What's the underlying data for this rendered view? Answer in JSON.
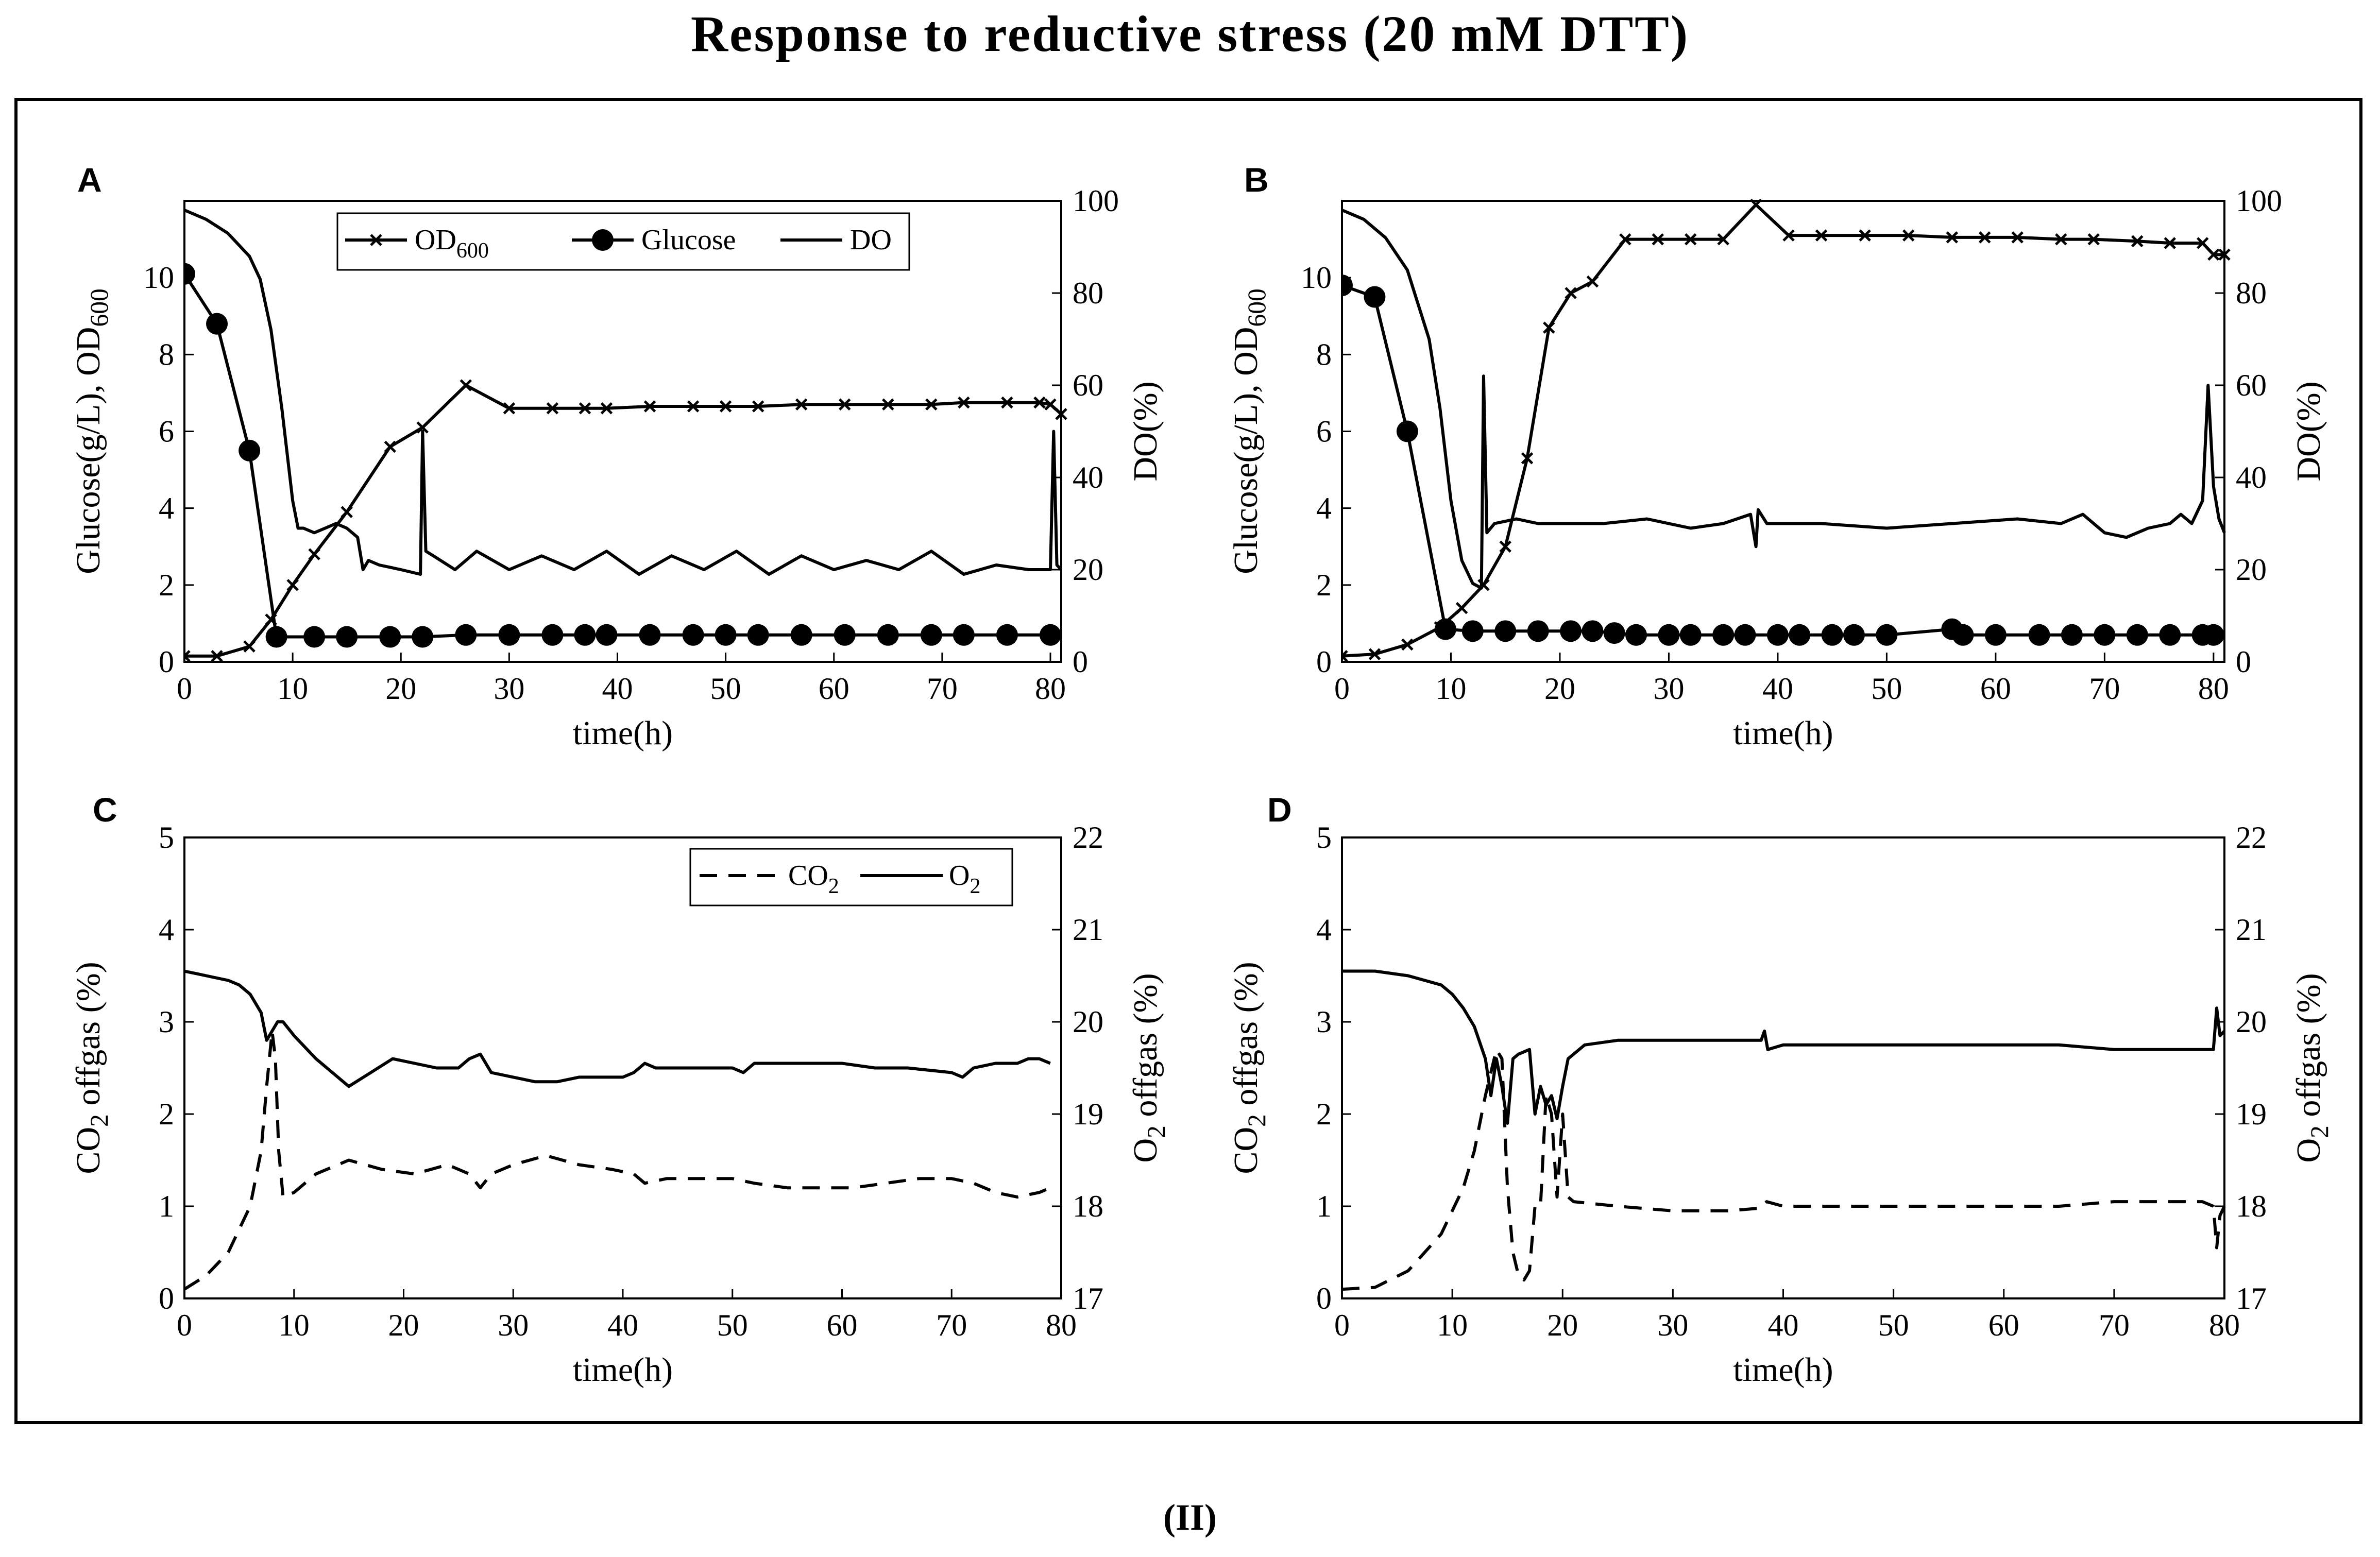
{
  "title": "Response to reductive stress (20 mM DTT)",
  "figure_label": "(II)",
  "chart_data": [
    {
      "panel": "A",
      "type": "line",
      "xlabel": "time(h)",
      "ylabel": "Glucose(g/L), OD",
      "ylabel_sub": "600",
      "y2label": "DO(%)",
      "xlim": [
        0,
        81
      ],
      "ylim": [
        0,
        12
      ],
      "y2lim": [
        0,
        100
      ],
      "xticks": [
        0,
        10,
        20,
        30,
        40,
        50,
        60,
        70,
        80
      ],
      "yticks": [
        0,
        2,
        4,
        6,
        8,
        10
      ],
      "y2ticks": [
        0,
        20,
        40,
        60,
        80,
        100
      ],
      "legend": [
        {
          "label": "OD",
          "sub": "600",
          "marker": "x"
        },
        {
          "label": "Glucose",
          "marker": "o"
        },
        {
          "label": "DO",
          "marker": "none"
        }
      ],
      "series": [
        {
          "name": "OD600",
          "axis": "left",
          "marker": "x",
          "x": [
            0,
            3,
            6,
            8,
            10,
            12,
            15,
            19,
            22,
            26,
            30,
            34,
            37,
            39,
            43,
            47,
            50,
            53,
            57,
            61,
            65,
            69,
            72,
            76,
            79,
            80,
            81
          ],
          "y": [
            0.15,
            0.15,
            0.4,
            1.1,
            2.0,
            2.8,
            3.9,
            5.6,
            6.1,
            7.2,
            6.6,
            6.6,
            6.6,
            6.6,
            6.65,
            6.65,
            6.65,
            6.65,
            6.7,
            6.7,
            6.7,
            6.7,
            6.75,
            6.75,
            6.75,
            6.7,
            6.45
          ]
        },
        {
          "name": "Glucose",
          "axis": "left",
          "marker": "o",
          "x": [
            0,
            3,
            6,
            8.5,
            12,
            15,
            19,
            22,
            26,
            30,
            34,
            37,
            39,
            43,
            47,
            50,
            53,
            57,
            61,
            65,
            69,
            72,
            76,
            80
          ],
          "y": [
            10.1,
            8.8,
            5.5,
            0.65,
            0.65,
            0.65,
            0.65,
            0.65,
            0.7,
            0.7,
            0.7,
            0.7,
            0.7,
            0.7,
            0.7,
            0.7,
            0.7,
            0.7,
            0.7,
            0.7,
            0.7,
            0.7,
            0.7,
            0.7
          ]
        },
        {
          "name": "DO",
          "axis": "right",
          "marker": "none",
          "x": [
            0,
            2,
            4,
            6,
            7,
            8,
            9,
            10,
            10.5,
            11,
            12,
            13,
            14,
            15,
            16,
            16.5,
            17,
            18,
            20,
            21.8,
            22,
            22.3,
            23,
            25,
            27,
            30,
            33,
            36,
            39,
            42,
            45,
            48,
            51,
            54,
            57,
            60,
            63,
            66,
            69,
            72,
            75,
            78,
            80,
            80.3,
            80.6,
            81
          ],
          "y": [
            98,
            96,
            93,
            88,
            83,
            72,
            55,
            35,
            29,
            29,
            28,
            29,
            30,
            29,
            27,
            20,
            22,
            21,
            20,
            19,
            50,
            24,
            23,
            20,
            24,
            20,
            23,
            20,
            24,
            19,
            23,
            20,
            24,
            19,
            23,
            20,
            22,
            20,
            24,
            19,
            21,
            20,
            20,
            50,
            21,
            20
          ]
        }
      ]
    },
    {
      "panel": "B",
      "type": "line",
      "xlabel": "time(h)",
      "ylabel": "Glucose(g/L), OD",
      "ylabel_sub": "600",
      "y2label": "DO(%)",
      "xlim": [
        0,
        81
      ],
      "ylim": [
        0,
        12
      ],
      "y2lim": [
        0,
        100
      ],
      "xticks": [
        0,
        10,
        20,
        30,
        40,
        50,
        60,
        70,
        80
      ],
      "yticks": [
        0,
        2,
        4,
        6,
        8,
        10
      ],
      "y2ticks": [
        0,
        20,
        40,
        60,
        80,
        100
      ],
      "series": [
        {
          "name": "OD600",
          "axis": "left",
          "marker": "x",
          "x": [
            0,
            3,
            6,
            9,
            11,
            13,
            15,
            17,
            19,
            21,
            23,
            26,
            29,
            32,
            35,
            38,
            41,
            44,
            48,
            52,
            56,
            59,
            62,
            66,
            69,
            73,
            76,
            79,
            80,
            81
          ],
          "y": [
            0.15,
            0.2,
            0.45,
            0.9,
            1.4,
            2.0,
            3.0,
            5.3,
            8.7,
            9.6,
            9.9,
            11.0,
            11.0,
            11.0,
            11.0,
            11.9,
            11.1,
            11.1,
            11.1,
            11.1,
            11.05,
            11.05,
            11.05,
            11.0,
            11.0,
            10.95,
            10.9,
            10.9,
            10.6,
            10.6
          ]
        },
        {
          "name": "Glucose",
          "axis": "left",
          "marker": "o",
          "x": [
            0,
            3,
            6,
            9.5,
            12,
            15,
            18,
            21,
            23,
            25,
            27,
            30,
            32,
            35,
            37,
            40,
            42,
            45,
            47,
            50,
            56,
            57,
            60,
            64,
            67,
            70,
            73,
            76,
            79,
            80
          ],
          "y": [
            9.8,
            9.5,
            6.0,
            0.85,
            0.8,
            0.8,
            0.8,
            0.8,
            0.8,
            0.75,
            0.7,
            0.7,
            0.7,
            0.7,
            0.7,
            0.7,
            0.7,
            0.7,
            0.7,
            0.7,
            0.85,
            0.7,
            0.7,
            0.7,
            0.7,
            0.7,
            0.7,
            0.7,
            0.7,
            0.7
          ]
        },
        {
          "name": "DO",
          "axis": "right",
          "marker": "none",
          "x": [
            0,
            2,
            4,
            6,
            8,
            9,
            10,
            11,
            12,
            12.8,
            13,
            13.3,
            14,
            16,
            18,
            20,
            24,
            28,
            32,
            35,
            37.5,
            38,
            38.2,
            39,
            44,
            50,
            56,
            62,
            66,
            68,
            70,
            72,
            74,
            76,
            77,
            78,
            79,
            79.5,
            80,
            80.5,
            81
          ],
          "y": [
            98,
            96,
            92,
            85,
            70,
            55,
            35,
            22,
            17,
            16,
            62,
            28,
            30,
            31,
            30,
            30,
            30,
            31,
            29,
            30,
            32,
            25,
            33,
            30,
            30,
            29,
            30,
            31,
            30,
            32,
            28,
            27,
            29,
            30,
            32,
            30,
            35,
            60,
            38,
            31,
            28
          ]
        }
      ]
    },
    {
      "panel": "C",
      "type": "line",
      "xlabel": "time(h)",
      "ylabel": "CO",
      "ylabel_sub": "2",
      "ylabel_rest": " offgas (%)",
      "y2label": "O",
      "y2label_sub": "2",
      "y2label_rest": " offgas (%)",
      "xlim": [
        0,
        80
      ],
      "ylim": [
        0,
        5
      ],
      "y2lim": [
        17,
        22
      ],
      "xticks": [
        0,
        10,
        20,
        30,
        40,
        50,
        60,
        70,
        80
      ],
      "yticks": [
        0,
        1,
        2,
        3,
        4,
        5
      ],
      "y2ticks": [
        17,
        18,
        19,
        20,
        21,
        22
      ],
      "legend": [
        {
          "label": "CO",
          "sub": "2",
          "style": "dashed"
        },
        {
          "label": "O",
          "sub": "2",
          "style": "solid"
        }
      ],
      "series": [
        {
          "name": "CO2",
          "axis": "left",
          "style": "dashed",
          "x": [
            0,
            2,
            4,
            6,
            7,
            7.5,
            8,
            8.3,
            8.6,
            9,
            10,
            12,
            15,
            18,
            21,
            24,
            26,
            27,
            28,
            30,
            33,
            36,
            39,
            41,
            42,
            44,
            47,
            50,
            52,
            55,
            58,
            61,
            64,
            67,
            70,
            72,
            74,
            76,
            78,
            79
          ],
          "y": [
            0.1,
            0.25,
            0.5,
            1.0,
            1.6,
            2.3,
            2.9,
            2.6,
            1.6,
            1.1,
            1.15,
            1.35,
            1.5,
            1.4,
            1.35,
            1.45,
            1.35,
            1.2,
            1.35,
            1.45,
            1.55,
            1.45,
            1.4,
            1.35,
            1.25,
            1.3,
            1.3,
            1.3,
            1.25,
            1.2,
            1.2,
            1.2,
            1.25,
            1.3,
            1.3,
            1.25,
            1.15,
            1.1,
            1.15,
            1.2
          ]
        },
        {
          "name": "O2",
          "axis": "right",
          "style": "solid",
          "x": [
            0,
            2,
            4,
            5,
            6,
            7,
            7.5,
            8,
            8.5,
            9,
            10,
            12,
            15,
            17,
            19,
            21,
            23,
            25,
            26,
            27,
            28,
            30,
            32,
            34,
            36,
            38,
            40,
            41,
            42,
            43,
            45,
            48,
            50,
            51,
            52,
            54,
            57,
            60,
            63,
            66,
            70,
            71,
            72,
            74,
            76,
            77,
            78,
            79
          ],
          "y": [
            20.55,
            20.5,
            20.45,
            20.4,
            20.3,
            20.1,
            19.8,
            19.9,
            20.0,
            20.0,
            19.85,
            19.6,
            19.3,
            19.45,
            19.6,
            19.55,
            19.5,
            19.5,
            19.6,
            19.65,
            19.45,
            19.4,
            19.35,
            19.35,
            19.4,
            19.4,
            19.4,
            19.45,
            19.55,
            19.5,
            19.5,
            19.5,
            19.5,
            19.45,
            19.55,
            19.55,
            19.55,
            19.55,
            19.5,
            19.5,
            19.45,
            19.4,
            19.5,
            19.55,
            19.55,
            19.6,
            19.6,
            19.55
          ]
        }
      ]
    },
    {
      "panel": "D",
      "type": "line",
      "xlabel": "time(h)",
      "ylabel": "CO",
      "ylabel_sub": "2",
      "ylabel_rest": " offgas (%)",
      "y2label": "O",
      "y2label_sub": "2",
      "y2label_rest": " offgas (%)",
      "xlim": [
        0,
        80
      ],
      "ylim": [
        0,
        5
      ],
      "y2lim": [
        17,
        22
      ],
      "xticks": [
        0,
        10,
        20,
        30,
        40,
        50,
        60,
        70,
        80
      ],
      "yticks": [
        0,
        1,
        2,
        3,
        4,
        5
      ],
      "y2ticks": [
        17,
        18,
        19,
        20,
        21,
        22
      ],
      "series": [
        {
          "name": "CO2",
          "axis": "left",
          "style": "dashed",
          "x": [
            0,
            3,
            6,
            9,
            11,
            12,
            13,
            14,
            14.5,
            15,
            15.5,
            16,
            16.5,
            17,
            17.5,
            18,
            18.5,
            19,
            19.5,
            20,
            20.5,
            21,
            25,
            30,
            35,
            38,
            38.5,
            40,
            45,
            50,
            55,
            60,
            65,
            70,
            75,
            78,
            79,
            79.3,
            79.6,
            80
          ],
          "y": [
            0.1,
            0.12,
            0.3,
            0.7,
            1.2,
            1.6,
            2.2,
            2.7,
            2.6,
            1.2,
            0.5,
            0.25,
            0.2,
            0.3,
            1.0,
            1.0,
            2.2,
            2.0,
            1.1,
            2.0,
            1.1,
            1.05,
            1.0,
            0.95,
            0.95,
            0.98,
            1.05,
            1.0,
            1.0,
            1.0,
            1.0,
            1.0,
            1.0,
            1.05,
            1.05,
            1.05,
            1.0,
            0.55,
            0.9,
            1.0
          ]
        },
        {
          "name": "O2",
          "axis": "right",
          "style": "solid",
          "x": [
            0,
            3,
            6,
            9,
            10,
            11,
            12,
            13,
            13.5,
            14,
            14.5,
            15,
            15.5,
            16,
            17,
            17.5,
            18,
            18.5,
            19,
            19.5,
            20,
            20.5,
            22,
            25,
            30,
            35,
            38,
            38.3,
            38.6,
            40,
            45,
            50,
            55,
            60,
            65,
            70,
            75,
            79,
            79.3,
            79.6,
            80
          ],
          "y": [
            20.55,
            20.55,
            20.5,
            20.4,
            20.3,
            20.15,
            19.95,
            19.6,
            19.2,
            19.6,
            19.3,
            18.9,
            19.6,
            19.65,
            19.7,
            19.0,
            19.3,
            19.1,
            19.2,
            18.95,
            19.3,
            19.6,
            19.75,
            19.8,
            19.8,
            19.8,
            19.8,
            19.9,
            19.7,
            19.75,
            19.75,
            19.75,
            19.75,
            19.75,
            19.75,
            19.7,
            19.7,
            19.7,
            20.15,
            19.85,
            19.9
          ]
        }
      ]
    }
  ]
}
